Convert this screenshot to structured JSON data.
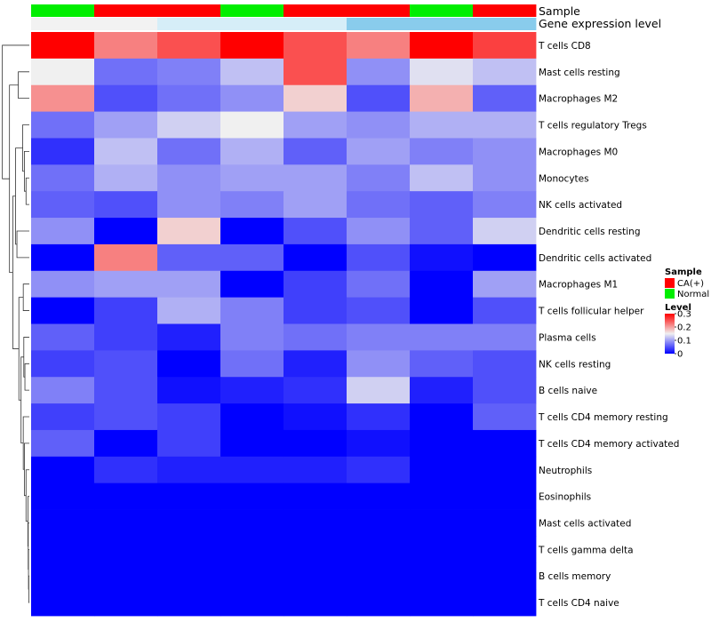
{
  "chart_data": {
    "type": "heatmap",
    "title": "",
    "annotation_tracks": [
      {
        "name": "Sample",
        "values": [
          "Normal",
          "CA(+)",
          "CA(+)",
          "Normal",
          "CA(+)",
          "CA(+)",
          "Normal",
          "CA(+)"
        ]
      },
      {
        "name": "Gene expression level",
        "values": [
          0,
          0,
          1,
          1,
          1,
          2,
          2,
          2
        ]
      }
    ],
    "annotation_colors": {
      "Sample": {
        "CA(+)": "#ff0000",
        "Normal": "#00ee00"
      },
      "Gene expression level": [
        "#f2f2f2",
        "#d6eef8",
        "#89ccec"
      ]
    },
    "rows": [
      "T cells CD8",
      "Mast cells resting",
      "Macrophages M2",
      "T cells regulatory  Tregs",
      "Macrophages M0",
      "Monocytes",
      "NK cells activated",
      "Dendritic cells resting",
      "Dendritic cells activated",
      "Macrophages M1",
      "T cells follicular helper",
      "Plasma cells",
      "NK cells resting",
      "B cells naive",
      "T cells CD4 memory resting",
      "T cells CD4 memory activated",
      "Neutrophils",
      "Eosinophils",
      "Mast cells activated",
      "T cells gamma delta",
      "B cells memory",
      "T cells CD4 naive"
    ],
    "values": [
      [
        0.3,
        0.22,
        0.25,
        0.3,
        0.25,
        0.22,
        0.3,
        0.26
      ],
      [
        0.15,
        0.07,
        0.08,
        0.12,
        0.25,
        0.09,
        0.14,
        0.12
      ],
      [
        0.21,
        0.05,
        0.07,
        0.09,
        0.17,
        0.05,
        0.19,
        0.06
      ],
      [
        0.07,
        0.1,
        0.13,
        0.15,
        0.1,
        0.09,
        0.11,
        0.11
      ],
      [
        0.03,
        0.12,
        0.07,
        0.11,
        0.06,
        0.1,
        0.08,
        0.09
      ],
      [
        0.07,
        0.11,
        0.09,
        0.1,
        0.1,
        0.08,
        0.12,
        0.09
      ],
      [
        0.06,
        0.05,
        0.09,
        0.08,
        0.1,
        0.07,
        0.06,
        0.08
      ],
      [
        0.09,
        0.0,
        0.17,
        0.0,
        0.05,
        0.09,
        0.06,
        0.13
      ],
      [
        0.0,
        0.22,
        0.06,
        0.06,
        0.0,
        0.05,
        0.01,
        0.0
      ],
      [
        0.09,
        0.1,
        0.1,
        0.0,
        0.04,
        0.07,
        0.0,
        0.1
      ],
      [
        0.0,
        0.04,
        0.11,
        0.08,
        0.04,
        0.05,
        0.0,
        0.05
      ],
      [
        0.06,
        0.04,
        0.02,
        0.08,
        0.07,
        0.08,
        0.08,
        0.08
      ],
      [
        0.04,
        0.05,
        0.0,
        0.07,
        0.02,
        0.09,
        0.06,
        0.05
      ],
      [
        0.08,
        0.05,
        0.01,
        0.02,
        0.03,
        0.13,
        0.02,
        0.05
      ],
      [
        0.04,
        0.05,
        0.04,
        0.0,
        0.01,
        0.03,
        0.0,
        0.06
      ],
      [
        0.06,
        0.0,
        0.04,
        0.0,
        0.0,
        0.01,
        0.0,
        0.0
      ],
      [
        0.0,
        0.03,
        0.02,
        0.02,
        0.02,
        0.03,
        0.0,
        0.0
      ],
      [
        0.0,
        0.0,
        0.0,
        0.0,
        0.0,
        0.0,
        0.0,
        0.0
      ],
      [
        0.0,
        0.0,
        0.0,
        0.0,
        0.0,
        0.0,
        0.0,
        0.0
      ],
      [
        0.0,
        0.0,
        0.0,
        0.0,
        0.0,
        0.0,
        0.0,
        0.0
      ],
      [
        0.0,
        0.0,
        0.0,
        0.0,
        0.0,
        0.0,
        0.0,
        0.0
      ],
      [
        0.0,
        0.0,
        0.0,
        0.0,
        0.0,
        0.0,
        0.0,
        0.0
      ]
    ],
    "color_scale": {
      "low": "#0000ff",
      "mid": "#f0f0f0",
      "high": "#ff0000",
      "range": [
        0,
        0.3
      ]
    },
    "legend": {
      "sample_title": "Sample",
      "sample_entries": [
        {
          "label": "CA(+)",
          "color": "#ff0000"
        },
        {
          "label": "Normal",
          "color": "#00ee00"
        }
      ],
      "level_title": "Level",
      "level_ticks": [
        "0",
        "0.1",
        "0.2",
        "0.3"
      ],
      "level_tick_values": [
        0,
        0.1,
        0.2,
        0.3
      ],
      "placement": "right"
    },
    "dendrogram": "rows"
  }
}
